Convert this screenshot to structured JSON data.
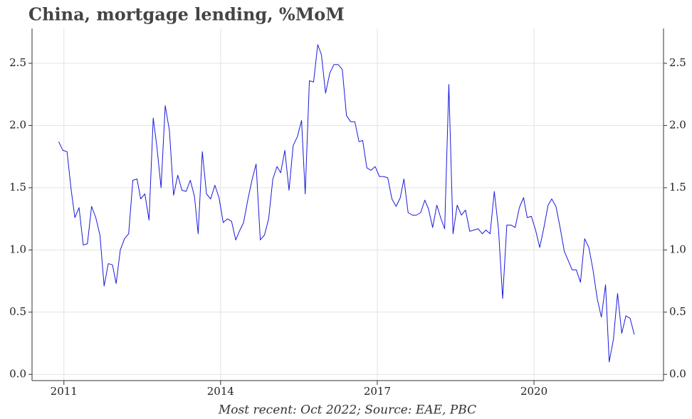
{
  "chart_data": {
    "type": "line",
    "title": "China, mortgage lending, %MoM",
    "caption": "Most recent: Oct 2022; Source: EAE, PBC",
    "x": [
      2010.9,
      2010.98,
      2011.06,
      2011.14,
      2011.21,
      2011.29,
      2011.37,
      2011.45,
      2011.53,
      2011.61,
      2011.69,
      2011.77,
      2011.85,
      2011.93,
      2012.0,
      2012.08,
      2012.16,
      2012.24,
      2012.32,
      2012.4,
      2012.47,
      2012.55,
      2012.63,
      2012.71,
      2012.78,
      2012.86,
      2012.94,
      2013.02,
      2013.1,
      2013.18,
      2013.26,
      2013.34,
      2013.42,
      2013.5,
      2013.57,
      2013.65,
      2013.73,
      2013.81,
      2013.89,
      2013.97,
      2014.05,
      2014.13,
      2014.21,
      2014.29,
      2014.36,
      2014.44,
      2014.52,
      2014.6,
      2014.68,
      2014.76,
      2014.84,
      2014.92,
      2015.0,
      2015.08,
      2015.15,
      2015.23,
      2015.31,
      2015.39,
      2015.47,
      2015.55,
      2015.62,
      2015.7,
      2015.78,
      2015.86,
      2015.93,
      2016.01,
      2016.09,
      2016.17,
      2016.25,
      2016.33,
      2016.41,
      2016.49,
      2016.57,
      2016.65,
      2016.72,
      2016.8,
      2016.88,
      2016.96,
      2017.04,
      2017.12,
      2017.2,
      2017.28,
      2017.36,
      2017.44,
      2017.51,
      2017.59,
      2017.67,
      2017.75,
      2017.83,
      2017.91,
      2017.98,
      2018.06,
      2018.14,
      2018.22,
      2018.29,
      2018.37,
      2018.45,
      2018.53,
      2018.61,
      2018.69,
      2018.77,
      2018.85,
      2018.93,
      2019.01,
      2019.08,
      2019.16,
      2019.24,
      2019.32,
      2019.4,
      2019.48,
      2019.56,
      2019.64,
      2019.72,
      2019.8,
      2019.87,
      2019.95,
      2020.03,
      2020.11,
      2020.19,
      2020.27,
      2020.34,
      2020.42,
      2020.5,
      2020.58,
      2020.65,
      2020.73,
      2020.81,
      2020.89,
      2020.97,
      2021.05,
      2021.13,
      2021.21,
      2021.29,
      2021.37,
      2021.44,
      2021.52,
      2021.6,
      2021.68,
      2021.76,
      2021.84,
      2021.92
    ],
    "series": [
      {
        "color": "#1a1adb",
        "values": [
          1.87,
          1.8,
          1.79,
          1.48,
          1.26,
          1.34,
          1.04,
          1.05,
          1.35,
          1.26,
          1.12,
          0.71,
          0.89,
          0.88,
          0.73,
          1.0,
          1.09,
          1.13,
          1.56,
          1.57,
          1.41,
          1.45,
          1.24,
          2.06,
          1.83,
          1.5,
          2.16,
          1.96,
          1.44,
          1.6,
          1.48,
          1.47,
          1.56,
          1.43,
          1.13,
          1.79,
          1.45,
          1.41,
          1.52,
          1.42,
          1.22,
          1.25,
          1.23,
          1.08,
          1.15,
          1.22,
          1.4,
          1.56,
          1.69,
          1.08,
          1.12,
          1.25,
          1.57,
          1.67,
          1.62,
          1.8,
          1.48,
          1.84,
          1.91,
          2.04,
          1.45,
          2.36,
          2.35,
          2.65,
          2.57,
          2.26,
          2.42,
          2.49,
          2.49,
          2.45,
          2.08,
          2.03,
          2.03,
          1.87,
          1.88,
          1.66,
          1.64,
          1.67,
          1.59,
          1.59,
          1.58,
          1.41,
          1.35,
          1.42,
          1.57,
          1.3,
          1.28,
          1.28,
          1.3,
          1.4,
          1.33,
          1.18,
          1.36,
          1.25,
          1.17,
          2.33,
          1.13,
          1.36,
          1.28,
          1.32,
          1.15,
          1.16,
          1.17,
          1.13,
          1.16,
          1.13,
          1.47,
          1.17,
          0.61,
          1.2,
          1.2,
          1.18,
          1.34,
          1.42,
          1.26,
          1.27,
          1.16,
          1.02,
          1.18,
          1.36,
          1.41,
          1.35,
          1.18,
          0.99,
          0.92,
          0.84,
          0.84,
          0.74,
          1.09,
          1.02,
          0.84,
          0.61,
          0.46,
          0.72,
          0.1,
          0.28,
          0.65,
          0.33,
          0.47,
          0.45,
          0.32
        ]
      }
    ],
    "xlim": [
      2010.39,
      2022.48
    ],
    "xticks": [
      2011,
      2014,
      2017,
      2020
    ],
    "ylim": [
      -0.05,
      2.78
    ],
    "yticks": [
      {
        "value": 0,
        "label": "0.0"
      },
      0.5,
      {
        "value": 1,
        "label": "1.0"
      },
      1.5,
      {
        "value": 2,
        "label": "2.0"
      },
      2.5
    ],
    "grid": true
  }
}
